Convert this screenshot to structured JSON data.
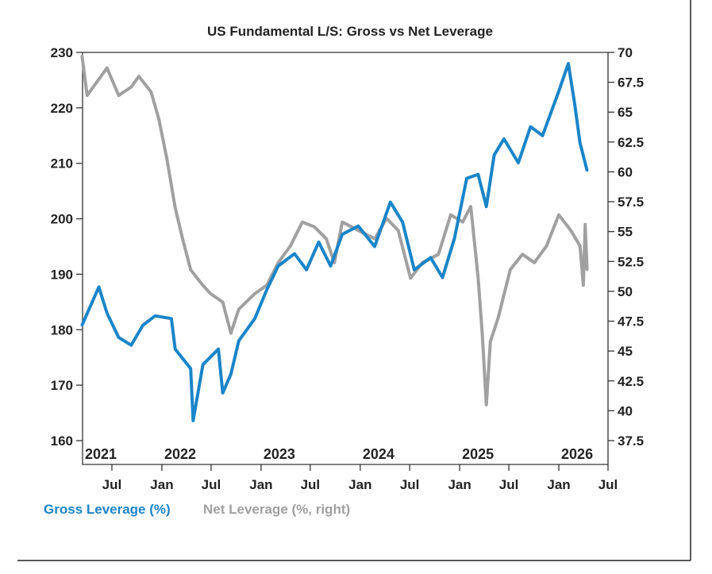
{
  "chart_data": {
    "type": "line",
    "title": "US Fundamental L/S: Gross vs Net Leverage",
    "xlabel": "",
    "ylabel": "",
    "xlim": [
      "2021-03-15",
      "2026-07-01"
    ],
    "ylim_left": [
      160,
      230
    ],
    "ylim_right": [
      37.5,
      70
    ],
    "left_ticks": [
      "230",
      "220",
      "210",
      "200",
      "190",
      "180",
      "170",
      "160"
    ],
    "right_ticks": [
      "70",
      "67.5",
      "65",
      "62.5",
      "60",
      "57.5",
      "55",
      "52.5",
      "50",
      "47.5",
      "45",
      "42.5",
      "40",
      "37.5"
    ],
    "month_ticks": [
      {
        "date": "2021-07-01",
        "label": "Jul"
      },
      {
        "date": "2022-01-01",
        "label": "Jan"
      },
      {
        "date": "2022-07-01",
        "label": "Jul"
      },
      {
        "date": "2023-01-01",
        "label": "Jan"
      },
      {
        "date": "2023-07-01",
        "label": "Jul"
      },
      {
        "date": "2024-01-01",
        "label": "Jan"
      },
      {
        "date": "2024-07-01",
        "label": "Jul"
      },
      {
        "date": "2025-01-01",
        "label": "Jan"
      },
      {
        "date": "2025-07-01",
        "label": "Jul"
      },
      {
        "date": "2026-01-01",
        "label": "Jan"
      },
      {
        "date": "2026-07-01",
        "label": "Jul"
      }
    ],
    "year_labels": [
      {
        "date": "2021-03-15",
        "label": "2021"
      },
      {
        "date": "2022-01-01",
        "label": "2022"
      },
      {
        "date": "2023-01-01",
        "label": "2023"
      },
      {
        "date": "2024-01-01",
        "label": "2024"
      },
      {
        "date": "2025-01-01",
        "label": "2025"
      },
      {
        "date": "2026-01-01",
        "label": "2026"
      }
    ],
    "grid": false,
    "legend": "bottom-left",
    "series": [
      {
        "name": "Gross Leverage (%)",
        "axis": "left",
        "color": "#1a85c8",
        "x": [
          "2021-03-13",
          "2021-05-14",
          "2021-06-13",
          "2021-07-26",
          "2021-09-10",
          "2021-10-23",
          "2021-12-07",
          "2022-02-05",
          "2022-02-19",
          "2022-04-17",
          "2022-04-26",
          "2022-06-01",
          "2022-07-28",
          "2022-08-13",
          "2022-09-12",
          "2022-10-11",
          "2022-12-09",
          "2023-01-22",
          "2023-03-05",
          "2023-05-04",
          "2023-06-17",
          "2023-08-01",
          "2023-09-14",
          "2023-10-27",
          "2023-12-25",
          "2024-02-23",
          "2024-04-21",
          "2024-06-05",
          "2024-07-18",
          "2024-09-16",
          "2024-10-30",
          "2024-12-13",
          "2025-01-27",
          "2025-03-10",
          "2025-04-09",
          "2025-05-08",
          "2025-06-13",
          "2025-08-05",
          "2025-09-19",
          "2025-11-02",
          "2026-01-01",
          "2026-02-05",
          "2026-02-28",
          "2026-03-20",
          "2026-04-15"
        ],
        "y": [
          180.8,
          187.7,
          183,
          178.6,
          177.2,
          180.8,
          182.5,
          182,
          176.5,
          173,
          163.6,
          173.7,
          176.5,
          168.6,
          172,
          178,
          182,
          187.2,
          191.5,
          193.7,
          190.8,
          195.8,
          191.5,
          197.2,
          198.7,
          195,
          203,
          199.4,
          190.8,
          193,
          189.4,
          196.5,
          207.3,
          208,
          202.2,
          211.5,
          214.4,
          210.1,
          216.6,
          215,
          223,
          228,
          220.8,
          213.7,
          208.7
        ]
      },
      {
        "name": "Net Leverage (%, right)",
        "axis": "right",
        "color": "#a0a0a0",
        "x": [
          "2021-03-13",
          "2021-04-01",
          "2021-06-13",
          "2021-07-26",
          "2021-09-10",
          "2021-10-08",
          "2021-11-22",
          "2021-12-21",
          "2022-01-20",
          "2022-02-19",
          "2022-03-18",
          "2022-04-17",
          "2022-06-01",
          "2022-06-29",
          "2022-08-13",
          "2022-09-12",
          "2022-10-11",
          "2022-12-09",
          "2023-01-22",
          "2023-03-05",
          "2023-04-19",
          "2023-06-02",
          "2023-07-16",
          "2023-08-29",
          "2023-09-28",
          "2023-10-27",
          "2023-12-25",
          "2024-02-23",
          "2024-04-07",
          "2024-05-20",
          "2024-07-04",
          "2024-08-17",
          "2024-10-15",
          "2024-11-29",
          "2025-01-12",
          "2025-02-11",
          "2025-03-10",
          "2025-03-25",
          "2025-04-09",
          "2025-04-24",
          "2025-05-23",
          "2025-07-06",
          "2025-08-20",
          "2025-10-03",
          "2025-11-17",
          "2026-01-01",
          "2026-02-14",
          "2026-03-20",
          "2026-04-01",
          "2026-04-08",
          "2026-04-15"
        ],
        "y": [
          69.7,
          66.4,
          68.7,
          66.4,
          67.1,
          68,
          66.7,
          64.4,
          61,
          57,
          54.4,
          51.8,
          50.5,
          49.8,
          49.1,
          46.5,
          48.5,
          49.8,
          50.5,
          52.4,
          53.8,
          55.8,
          55.4,
          54.4,
          52.4,
          55.8,
          55.1,
          54.4,
          56.1,
          55.1,
          51.1,
          52.4,
          53.1,
          56.4,
          55.8,
          57.1,
          51.1,
          46.5,
          40.5,
          45.8,
          47.8,
          51.8,
          53.1,
          52.4,
          53.8,
          56.4,
          55.1,
          53.8,
          50.5,
          55.6,
          51.8
        ]
      }
    ]
  }
}
